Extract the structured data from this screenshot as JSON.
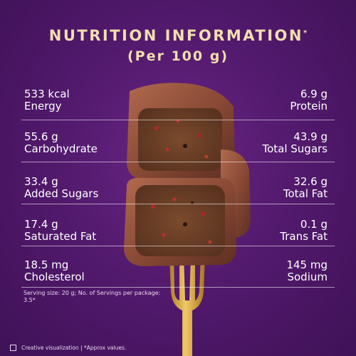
{
  "header": {
    "title": "NUTRITION INFORMATION",
    "title_mark": "*",
    "subtitle": "(Per 100 g)"
  },
  "nutrients": [
    {
      "value": "533 kcal",
      "label": "Energy"
    },
    {
      "value": "6.9 g",
      "label": "Protein"
    },
    {
      "value": "55.6 g",
      "label": "Carbohydrate"
    },
    {
      "value": "43.9 g",
      "label": "Total Sugars"
    },
    {
      "value": "33.4 g",
      "label": "Added Sugars"
    },
    {
      "value": "32.6 g",
      "label": "Total Fat"
    },
    {
      "value": "17.4 g",
      "label": "Saturated Fat"
    },
    {
      "value": "0.1 g",
      "label": "Trans Fat"
    },
    {
      "value": "18.5 mg",
      "label": "Cholesterol"
    },
    {
      "value": "145 mg",
      "label": "Sodium"
    }
  ],
  "footnote": "Serving size: 20 g; No. of Servings per package: 3.5*",
  "disclaimer": "Creative visualization | *Approx values.",
  "colors": {
    "background": "#531a6e",
    "title": "#f2dfae",
    "chocolate": "#8a4a36",
    "fork": "#e2b24a"
  },
  "icons": [
    "fork-icon",
    "chocolate-bar-image"
  ]
}
